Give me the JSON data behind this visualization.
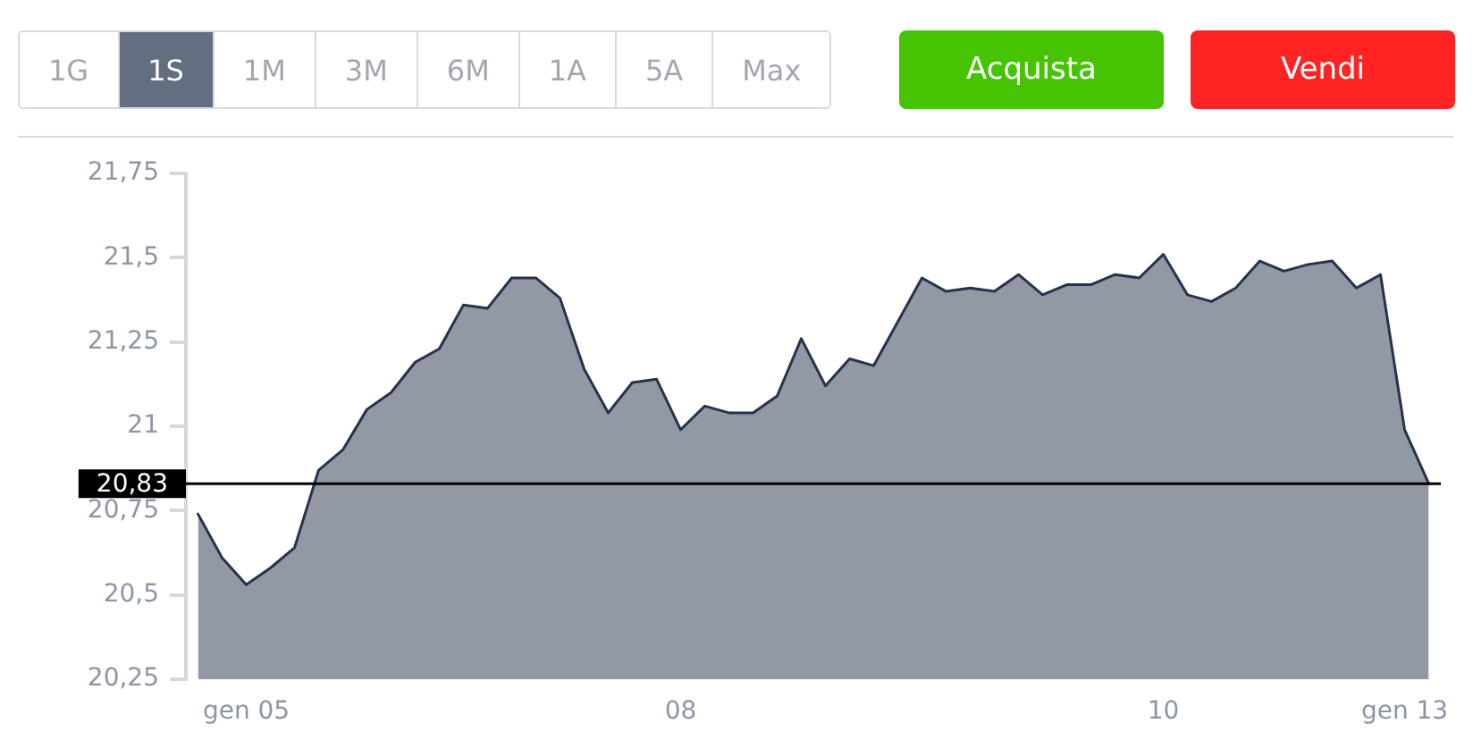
{
  "chart_data": {
    "type": "area",
    "annotations": [
      "1G",
      "1S",
      "1M",
      "3M",
      "6M",
      "1A",
      "5A",
      "Max",
      "Acquista",
      "Vendi"
    ],
    "categories": [
      null,
      null,
      "gen 05",
      null,
      null,
      null,
      null,
      null,
      null,
      null,
      null,
      null,
      null,
      null,
      null,
      null,
      null,
      null,
      null,
      null,
      "08",
      null,
      null,
      null,
      null,
      null,
      null,
      null,
      null,
      null,
      null,
      null,
      null,
      null,
      null,
      null,
      null,
      null,
      null,
      null,
      "10",
      null,
      null,
      null,
      null,
      null,
      null,
      null,
      null,
      null,
      "gen 13",
      null
    ],
    "values": [
      20.74,
      20.61,
      20.53,
      20.58,
      20.64,
      20.87,
      20.93,
      21.05,
      21.1,
      21.19,
      21.23,
      21.36,
      21.35,
      21.44,
      21.44,
      21.38,
      21.17,
      21.04,
      21.13,
      21.14,
      20.99,
      21.06,
      21.04,
      21.04,
      21.09,
      21.26,
      21.12,
      21.2,
      21.18,
      21.31,
      21.44,
      21.4,
      21.41,
      21.4,
      21.45,
      21.39,
      21.42,
      21.42,
      21.45,
      21.44,
      21.51,
      21.39,
      21.37,
      21.41,
      21.49,
      21.46,
      21.48,
      21.49,
      21.41,
      21.45,
      20.99,
      20.83
    ],
    "color": "#25334b",
    "ylim": [
      20.25,
      21.75
    ],
    "yticks": [
      {
        "value": 20.25,
        "label": "20,25"
      },
      {
        "value": 20.5,
        "label": "20,5"
      },
      {
        "value": 20.75,
        "label": "20,75"
      },
      21,
      {
        "value": 21.25,
        "label": "21,25"
      },
      {
        "value": 21.5,
        "label": "21,5"
      },
      {
        "value": 21.75,
        "label": "21,75"
      }
    ],
    "ref_lines": [
      {
        "axis": "y",
        "value": 20.83,
        "label": "20,83",
        "color": "#000000"
      }
    ]
  }
}
